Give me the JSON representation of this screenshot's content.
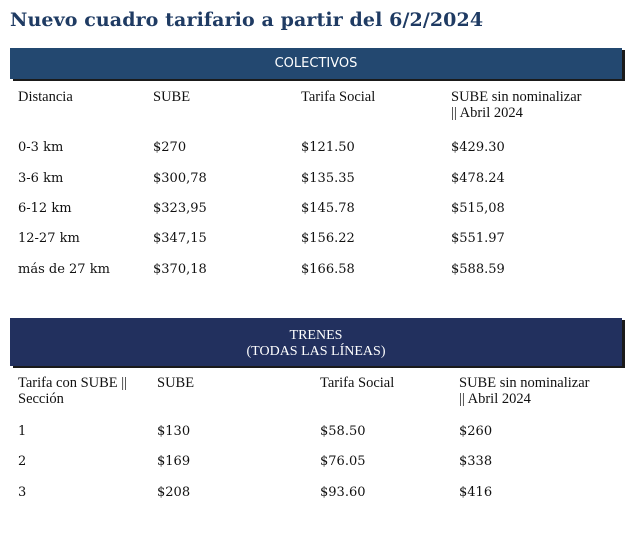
{
  "title": "Nuevo cuadro tarifario a partir del 6/2/2024",
  "colectivos": {
    "header": "COLECTIVOS",
    "columns": [
      "Distancia",
      "SUBE",
      "Tarifa Social",
      "SUBE sin nominalizar",
      "|| Abril 2024"
    ],
    "rows": [
      [
        "0-3 km",
        "$270",
        "$121.50",
        "$429.30"
      ],
      [
        "3-6 km",
        "$300,78",
        "$135.35",
        "$478.24"
      ],
      [
        "6-12 km",
        "$323,95",
        "$145.78",
        "$515,08"
      ],
      [
        "12-27 km",
        "$347,15",
        "$156.22",
        "$551.97"
      ],
      [
        "más de 27 km",
        "$370,18",
        "$166.58",
        "$588.59"
      ]
    ]
  },
  "trenes": {
    "header_line1": "TRENES",
    "header_line2": "(TODAS LAS LÍNEAS)",
    "columns": [
      "Tarifa con SUBE ||",
      "Sección",
      "SUBE",
      "Tarifa Social",
      "SUBE sin nominalizar",
      "|| Abril 2024"
    ],
    "rows": [
      [
        "1",
        "$130",
        "$58.50",
        "$260"
      ],
      [
        "2",
        "$169",
        "$76.05",
        "$338"
      ],
      [
        "3",
        "$208",
        "$93.60",
        "$416"
      ]
    ]
  },
  "colors": {
    "title": "#1f3b63",
    "colectivos_band": "#234870",
    "trenes_band": "#22305e"
  }
}
